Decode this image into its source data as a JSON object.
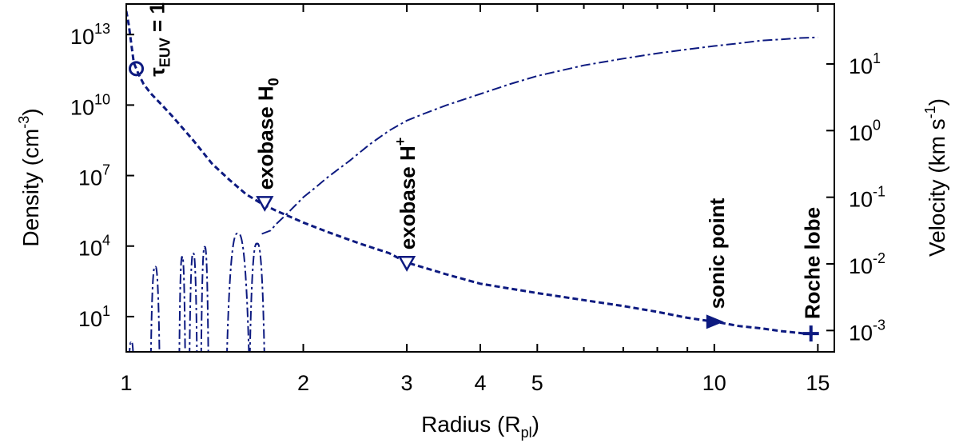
{
  "chart_data": {
    "type": "line",
    "xlabel": {
      "main": "Radius (R",
      "sub": "pl",
      "close": ")"
    },
    "ylabel_left": {
      "main": "Density (cm",
      "sup": "-3",
      "close": ")"
    },
    "ylabel_right": {
      "main": "Velocity (km s",
      "sup": "-1",
      "close": ")"
    },
    "x_scale": "log",
    "xlim": [
      1,
      16
    ],
    "x_ticks": [
      {
        "value": 1,
        "label": "1"
      },
      {
        "value": 2,
        "label": "2"
      },
      {
        "value": 3,
        "label": "3"
      },
      {
        "value": 4,
        "label": "4"
      },
      {
        "value": 5,
        "label": "5"
      },
      {
        "value": 10,
        "label": "10"
      },
      {
        "value": 15,
        "label": "15"
      }
    ],
    "y_left_scale": "log",
    "y_left_lim_log10": [
      -0.5,
      14.3
    ],
    "y_left_ticks": [
      {
        "exp": 1,
        "base": "10",
        "sup": "1"
      },
      {
        "exp": 4,
        "base": "10",
        "sup": "4"
      },
      {
        "exp": 7,
        "base": "10",
        "sup": "7"
      },
      {
        "exp": 10,
        "base": "10",
        "sup": "10"
      },
      {
        "exp": 13,
        "base": "10",
        "sup": "13"
      }
    ],
    "y_right_scale": "log",
    "y_right_lim_log10": [
      -3.32,
      1.9
    ],
    "y_right_ticks": [
      {
        "exp": -3,
        "base": "10",
        "sup": "-3"
      },
      {
        "exp": -2,
        "base": "10",
        "sup": "-2"
      },
      {
        "exp": -1,
        "base": "10",
        "sup": "-1"
      },
      {
        "exp": 0,
        "base": "10",
        "sup": "0"
      },
      {
        "exp": 1,
        "base": "10",
        "sup": "1"
      }
    ],
    "grid": false,
    "line_color": "#0d1a80",
    "series": [
      {
        "kind": "density",
        "axis": "left",
        "style": "dashed",
        "x": [
          1.0,
          1.01,
          1.02,
          1.03,
          1.05,
          1.07,
          1.1,
          1.15,
          1.2,
          1.3,
          1.4,
          1.5,
          1.6,
          1.7,
          1.8,
          2.0,
          2.2,
          2.5,
          2.8,
          3.0,
          3.5,
          4.0,
          5.0,
          6.0,
          7.0,
          8.0,
          9.0,
          10.2,
          11.0,
          12.0,
          13.0,
          14.0,
          14.7
        ],
        "y_log10": [
          14.0,
          13.4,
          12.6,
          11.8,
          11.3,
          10.9,
          10.5,
          10.0,
          9.5,
          8.5,
          7.5,
          6.8,
          6.2,
          5.8,
          5.5,
          5.0,
          4.6,
          4.1,
          3.7,
          3.3,
          2.8,
          2.4,
          2.0,
          1.7,
          1.45,
          1.2,
          0.95,
          0.75,
          0.6,
          0.5,
          0.38,
          0.3,
          0.25
        ]
      },
      {
        "kind": "velocity",
        "axis": "right",
        "style": "dash-dot",
        "x": [
          1.7,
          1.76,
          1.8,
          1.85,
          1.9,
          1.95,
          2.0,
          2.1,
          2.2,
          2.4,
          2.6,
          2.8,
          3.0,
          3.2,
          3.5,
          4.0,
          4.5,
          5.0,
          6.0,
          7.0,
          8.0,
          9.0,
          10.0,
          11.0,
          12.0,
          13.0,
          14.0,
          15.0
        ],
        "y_log10": [
          -1.55,
          -1.5,
          -1.4,
          -1.3,
          -1.2,
          -1.1,
          -1.0,
          -0.85,
          -0.7,
          -0.45,
          -0.2,
          0.0,
          0.15,
          0.25,
          0.38,
          0.55,
          0.7,
          0.82,
          0.98,
          1.08,
          1.16,
          1.22,
          1.27,
          1.31,
          1.35,
          1.37,
          1.39,
          1.4
        ]
      }
    ],
    "oscillations": [
      {
        "x_start": 1.01,
        "x_end": 1.03,
        "top_log10": -3.2
      },
      {
        "x_start": 1.1,
        "x_end": 1.14,
        "top_log10": -2.05
      },
      {
        "x_start": 1.23,
        "x_end": 1.26,
        "top_log10": -1.9
      },
      {
        "x_start": 1.28,
        "x_end": 1.32,
        "top_log10": -1.85
      },
      {
        "x_start": 1.34,
        "x_end": 1.38,
        "top_log10": -1.75
      },
      {
        "x_start": 1.48,
        "x_end": 1.62,
        "top_log10": -1.55
      },
      {
        "x_start": 1.62,
        "x_end": 1.72,
        "top_log10": -1.7
      }
    ],
    "markers": [
      {
        "label": "τ",
        "sub": "EUV",
        "suffix": " = 1",
        "x": 1.04,
        "y_log10": 11.55,
        "symbol": "circle-open"
      },
      {
        "label": "exobase H",
        "sub": "0",
        "x": 1.72,
        "y_log10": 5.85,
        "symbol": "triangle-down-open"
      },
      {
        "label": "exobase H",
        "sup": "+",
        "x": 3.0,
        "y_log10": 3.3,
        "symbol": "triangle-down-open"
      },
      {
        "label": "sonic point",
        "x": 10.0,
        "y_log10": 0.78,
        "symbol": "triangle-right-filled"
      },
      {
        "label": "Roche lobe",
        "x": 14.6,
        "y_log10": 0.28,
        "symbol": "plus"
      }
    ]
  }
}
